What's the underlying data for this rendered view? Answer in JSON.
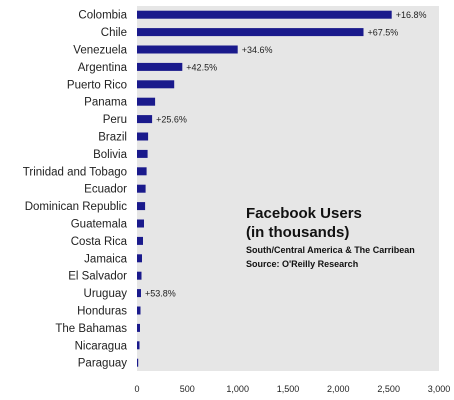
{
  "chart_data": {
    "type": "bar",
    "orientation": "horizontal",
    "title": "Facebook Users",
    "title_line2": "(in thousands)",
    "subtitle": "South/Central America & The Carribean",
    "source": "Source: O'Reilly Research",
    "categories": [
      "Colombia",
      "Chile",
      "Venezuela",
      "Argentina",
      "Puerto Rico",
      "Panama",
      "Peru",
      "Brazil",
      "Bolivia",
      "Trinidad and Tobago",
      "Ecuador",
      "Dominican Republic",
      "Guatemala",
      "Costa Rica",
      "Jamaica",
      "El Salvador",
      "Uruguay",
      "Honduras",
      "The Bahamas",
      "Nicaragua",
      "Paraguay"
    ],
    "values": [
      2530,
      2250,
      1000,
      450,
      370,
      180,
      150,
      110,
      105,
      95,
      85,
      80,
      70,
      60,
      50,
      45,
      40,
      35,
      30,
      25,
      12
    ],
    "annotations": [
      "+16.8%",
      "+67.5%",
      "+34.6%",
      "+42.5%",
      "",
      "",
      "+25.6%",
      "",
      "",
      "",
      "",
      "",
      "",
      "",
      "",
      "",
      "+53.8%",
      "",
      "",
      "",
      ""
    ],
    "xlim": [
      0,
      3000
    ],
    "xticks": [
      "0",
      "500",
      "1,000",
      "1,500",
      "2,000",
      "2,500",
      "3,000"
    ],
    "xtick_values": [
      0,
      500,
      1000,
      1500,
      2000,
      2500,
      3000
    ],
    "grid": false,
    "plot_background": "#e6e6e6",
    "bar_color": "#1a1a8c"
  }
}
